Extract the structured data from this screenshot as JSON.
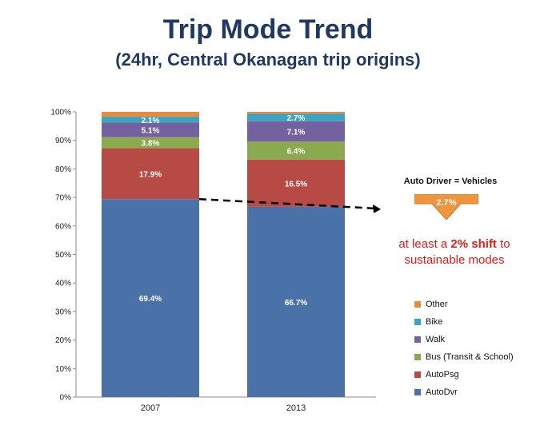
{
  "title": "Trip Mode Trend",
  "subtitle": "(24hr, Central Okanagan trip origins)",
  "chart_data": {
    "type": "bar",
    "stacked": true,
    "categories": [
      "2007",
      "2013"
    ],
    "series": [
      {
        "name": "AutoDvr",
        "color": "#4a72a8",
        "values": [
          69.4,
          66.7
        ],
        "labels": [
          "69.4%",
          "66.7%"
        ]
      },
      {
        "name": "AutoPsg",
        "color": "#b84a46",
        "values": [
          17.9,
          16.5
        ],
        "labels": [
          "17.9%",
          "16.5%"
        ]
      },
      {
        "name": "Bus (Transit & School)",
        "color": "#8ba94e",
        "values": [
          3.8,
          6.4
        ],
        "labels": [
          "3.8%",
          "6.4%"
        ]
      },
      {
        "name": "Walk",
        "color": "#7461a0",
        "values": [
          5.1,
          7.1
        ],
        "labels": [
          "5.1%",
          "7.1%"
        ]
      },
      {
        "name": "Bike",
        "color": "#3ea3bf",
        "values": [
          2.1,
          2.7
        ],
        "labels": [
          "2.1%",
          "2.7%"
        ]
      },
      {
        "name": "Other",
        "color": "#e98c3a",
        "values": [
          1.7,
          0.6
        ],
        "labels": [
          "",
          ""
        ]
      }
    ],
    "ylim": [
      0,
      100
    ],
    "yticks": [
      "0%",
      "10%",
      "20%",
      "30%",
      "40%",
      "50%",
      "60%",
      "70%",
      "80%",
      "90%",
      "100%"
    ],
    "grid": false,
    "legend_position": "bottom-right"
  },
  "callout": {
    "heading": "Auto Driver = Vehicles",
    "value": "2.7%",
    "arrow_color": "#f0953f",
    "text_prefix": "at least a ",
    "text_bold": "2% shift",
    "text_suffix": " to sustainable modes",
    "text_color": "#e01b1b"
  }
}
